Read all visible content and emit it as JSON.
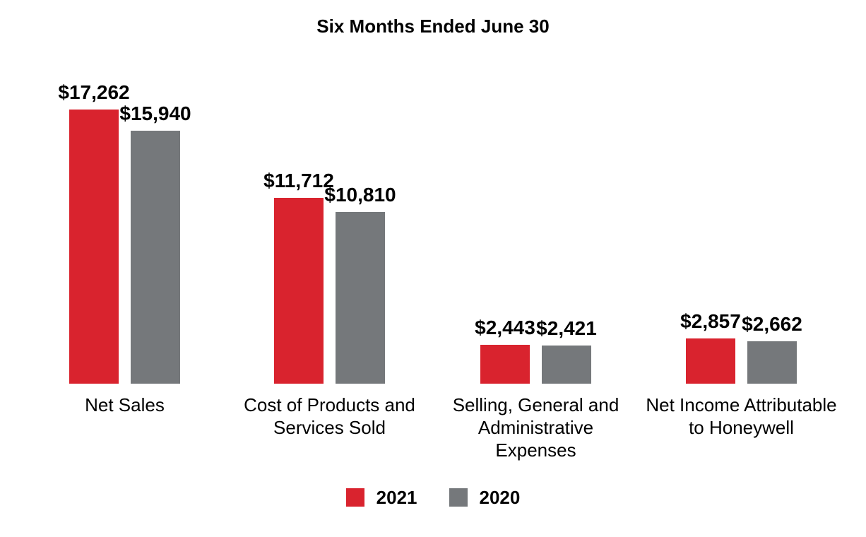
{
  "title": "Six Months Ended June 30",
  "colors": {
    "series_2021": "#D9232E",
    "series_2020": "#75787B",
    "text": "#000000",
    "background": "#FFFFFF"
  },
  "chart_data": {
    "type": "bar",
    "title": "Six Months Ended June 30",
    "categories": [
      "Net Sales",
      "Cost of Products and Services Sold",
      "Selling, General and Administrative Expenses",
      "Net Income Attributable to Honeywell"
    ],
    "category_lines": [
      [
        "Net Sales"
      ],
      [
        "Cost of Products and",
        "Services Sold"
      ],
      [
        "Selling, General and",
        "Administrative",
        "Expenses"
      ],
      [
        "Net Income Attributable",
        "to Honeywell"
      ]
    ],
    "series": [
      {
        "name": "2021",
        "color": "#D9232E",
        "values": [
          17262,
          11712,
          2443,
          2857
        ],
        "labels": [
          "$17,262",
          "$11,712",
          "$2,443",
          "$2,857"
        ]
      },
      {
        "name": "2020",
        "color": "#75787B",
        "values": [
          15940,
          10810,
          2421,
          2662
        ],
        "labels": [
          "$15,940",
          "$10,810",
          "$2,421",
          "$2,662"
        ]
      }
    ],
    "ylim": [
      0,
      17262
    ],
    "grid": false,
    "axes_visible": false,
    "data_labels": true,
    "legend_position": "bottom"
  },
  "legend": {
    "items": [
      {
        "label": "2021",
        "color": "#D9232E"
      },
      {
        "label": "2020",
        "color": "#75787B"
      }
    ]
  }
}
